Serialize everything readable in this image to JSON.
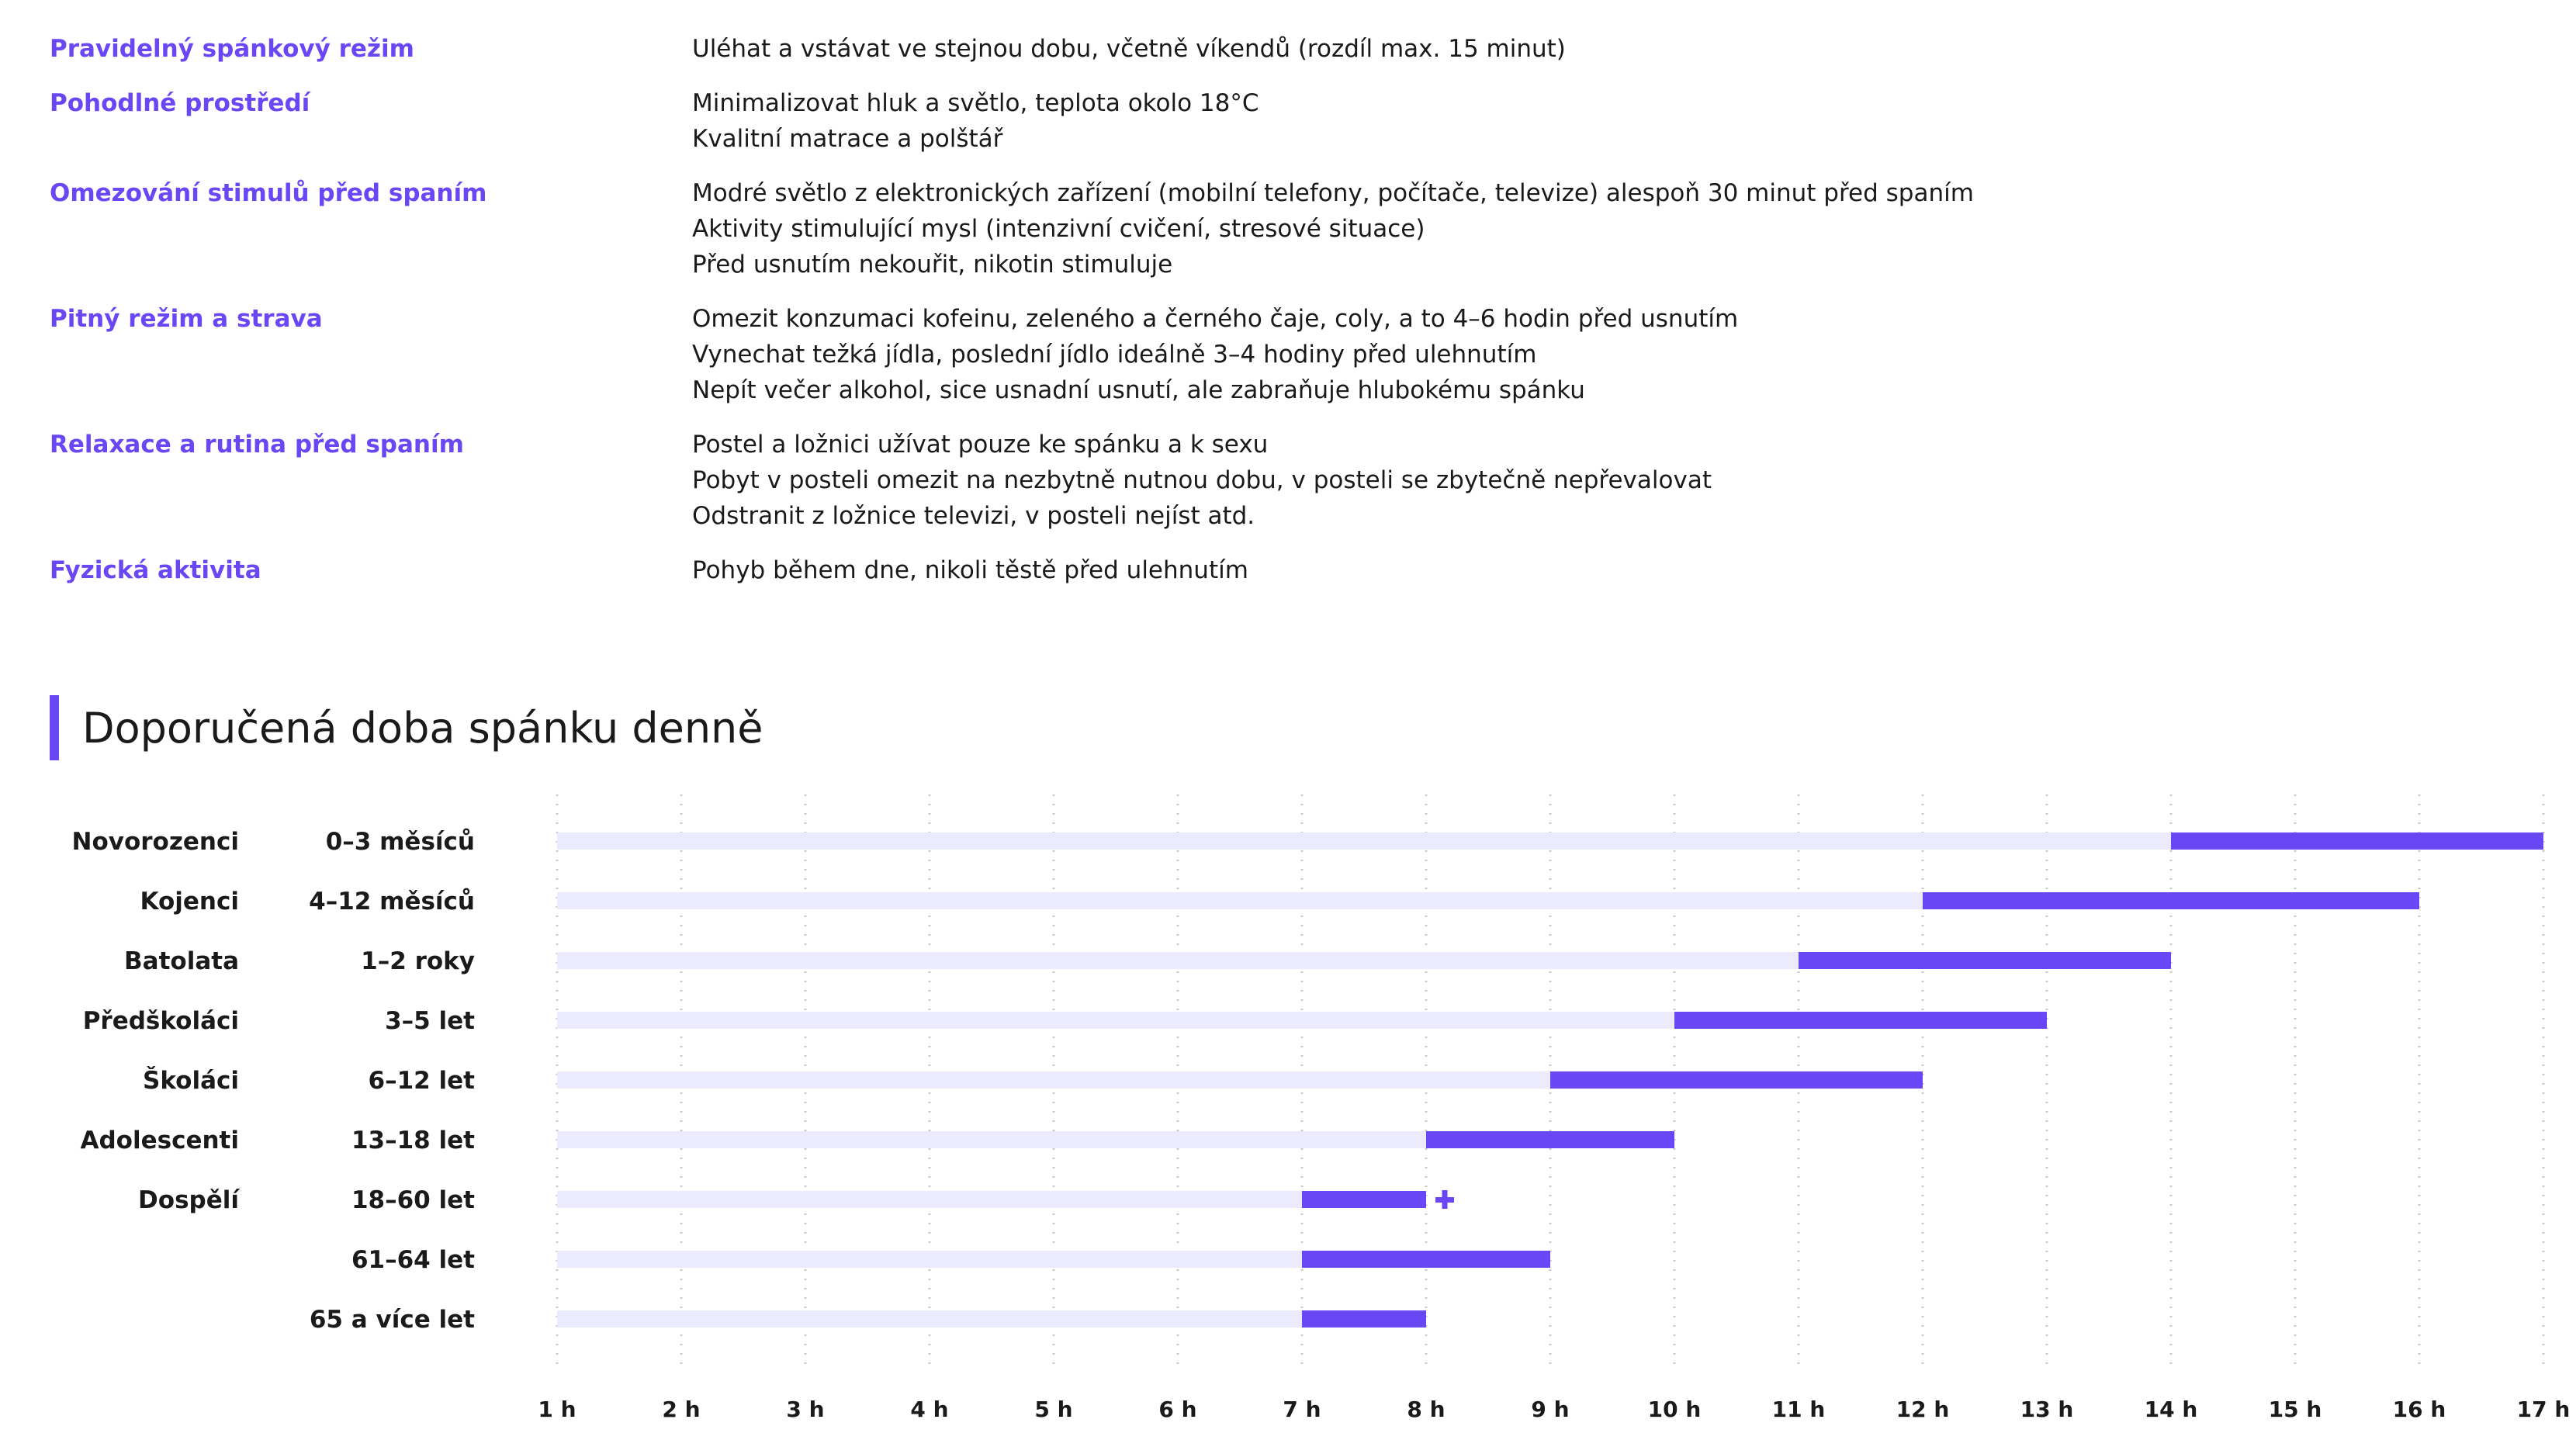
{
  "tips": [
    {
      "label": "Pravidelný spánkový režim",
      "lines": [
        "Uléhat a vstávat ve stejnou dobu, včetně víkendů (rozdíl max. 15 minut)"
      ]
    },
    {
      "label": "Pohodlné prostředí",
      "lines": [
        "Minimalizovat hluk a světlo, teplota okolo 18°C",
        "Kvalitní matrace a polštář"
      ]
    },
    {
      "label": "Omezování stimulů před spaním",
      "lines": [
        "Modré světlo z elektronických zařízení (mobilní telefony, počítače, televize) alespoň 30 minut před spaním",
        "Aktivity stimulující mysl (intenzivní cvičení, stresové situace)",
        "Před usnutím nekouřit, nikotin stimuluje"
      ]
    },
    {
      "label": "Pitný režim a strava",
      "lines": [
        "Omezit konzumaci kofeinu, zeleného a černého čaje, coly, a to 4–6 hodin před usnutím",
        "Vynechat težká jídla, poslední jídlo ideálně 3–4 hodiny před ulehnutím",
        "Nepít večer alkohol, sice usnadní usnutí, ale zabraňuje hlubokému spánku"
      ]
    },
    {
      "label": "Relaxace a rutina před spaním",
      "lines": [
        "Postel a ložnici užívat pouze ke spánku a k sexu",
        "Pobyt v posteli omezit na nezbytně nutnou dobu, v posteli se zbytečně nepřevalovat",
        "Odstranit z ložnice televizi, v posteli nejíst atd."
      ]
    },
    {
      "label": "Fyzická aktivita",
      "lines": [
        "Pohyb během dne, nikoli těstě před ulehnutím"
      ]
    }
  ],
  "section_title": "Doporučená doba spánku denně",
  "chart_data": {
    "type": "bar",
    "orientation": "horizontal-range",
    "title": "Doporučená doba spánku denně",
    "xlim": [
      1,
      17
    ],
    "ticks": [
      "1 h",
      "2 h",
      "3 h",
      "4 h",
      "5 h",
      "6 h",
      "7 h",
      "8 h",
      "9 h",
      "10 h",
      "11 h",
      "12 h",
      "13 h",
      "14 h",
      "15 h",
      "16 h",
      "17 h"
    ],
    "grid": "vertical dotted",
    "rows": [
      {
        "group": "Novorozenci",
        "age": "0–3 měsíců",
        "min": 14,
        "max": 17
      },
      {
        "group": "Kojenci",
        "age": "4–12 měsíců",
        "min": 12,
        "max": 16
      },
      {
        "group": "Batolata",
        "age": "1–2 roky",
        "min": 11,
        "max": 14
      },
      {
        "group": "Předškoláci",
        "age": "3–5 let",
        "min": 10,
        "max": 13
      },
      {
        "group": "Školáci",
        "age": "6–12 let",
        "min": 9,
        "max": 12
      },
      {
        "group": "Adolescenti",
        "age": "13–18 let",
        "min": 8,
        "max": 10
      },
      {
        "group": "Dospělí",
        "age": "18–60 let",
        "min": 7,
        "max": 8,
        "plus": true
      },
      {
        "group": "",
        "age": "61–64 let",
        "min": 7,
        "max": 9
      },
      {
        "group": "",
        "age": "65 a více let",
        "min": 7,
        "max": 8
      }
    ],
    "colors": {
      "range": "#6a47f5",
      "track": "#eceafd",
      "grid": "#c8c8c8"
    }
  }
}
